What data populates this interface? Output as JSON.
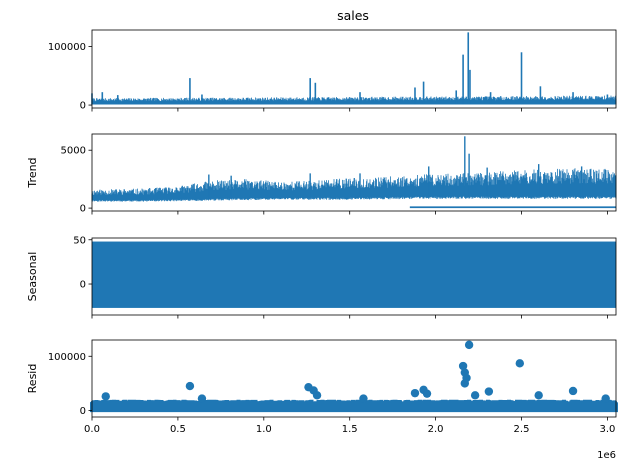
{
  "colors": {
    "series": "#1f77b4",
    "axes": "#000000",
    "background": "#ffffff"
  },
  "figure": {
    "title": "sales",
    "x_offset_label": "1e6"
  },
  "chart_data": [
    {
      "type": "line",
      "name": "observed",
      "title": "sales",
      "ylabel": "",
      "xlim": [
        0,
        3050000
      ],
      "ylim": [
        -5000,
        128000
      ],
      "yticks": [
        0,
        100000
      ],
      "ytick_labels": [
        "0",
        "100000"
      ],
      "sharex_hidden_labels": true,
      "baseline_band": [
        1000,
        13000
      ],
      "peaks": [
        {
          "x": 0,
          "y": 20000
        },
        {
          "x": 60000,
          "y": 22000
        },
        {
          "x": 150000,
          "y": 17000
        },
        {
          "x": 570000,
          "y": 46000
        },
        {
          "x": 640000,
          "y": 18000
        },
        {
          "x": 1270000,
          "y": 46000
        },
        {
          "x": 1300000,
          "y": 38000
        },
        {
          "x": 1560000,
          "y": 22000
        },
        {
          "x": 1880000,
          "y": 30000
        },
        {
          "x": 1930000,
          "y": 40000
        },
        {
          "x": 2120000,
          "y": 25000
        },
        {
          "x": 2160000,
          "y": 86000
        },
        {
          "x": 2190000,
          "y": 124000
        },
        {
          "x": 2200000,
          "y": 60000
        },
        {
          "x": 2320000,
          "y": 22000
        },
        {
          "x": 2500000,
          "y": 90000
        },
        {
          "x": 2610000,
          "y": 32000
        },
        {
          "x": 2800000,
          "y": 22000
        },
        {
          "x": 3000000,
          "y": 18000
        }
      ]
    },
    {
      "type": "line",
      "name": "trend",
      "ylabel": "Trend",
      "xlim": [
        0,
        3050000
      ],
      "ylim": [
        -250,
        6400
      ],
      "yticks": [
        0,
        5000
      ],
      "ytick_labels": [
        "0",
        "5000"
      ],
      "sharex_hidden_labels": true,
      "envelope": {
        "x": [
          0,
          300000,
          500000,
          700000,
          900000,
          1100000,
          1300000,
          1500000,
          1700000,
          1900000,
          2100000,
          2300000,
          2500000,
          2700000,
          2900000,
          3050000
        ],
        "low": [
          700,
          700,
          750,
          800,
          850,
          900,
          900,
          900,
          950,
          1000,
          1000,
          1000,
          1000,
          1000,
          1000,
          1000
        ],
        "high": [
          1600,
          1700,
          1900,
          2400,
          2500,
          2300,
          2400,
          2600,
          2700,
          2900,
          3000,
          3100,
          3300,
          3400,
          3500,
          3300
        ]
      },
      "low_floor_band": [
        {
          "x0": 1850000,
          "x1": 3050000,
          "y": 0
        }
      ],
      "peaks": [
        {
          "x": 680000,
          "y": 2900
        },
        {
          "x": 810000,
          "y": 2800
        },
        {
          "x": 1270000,
          "y": 3000
        },
        {
          "x": 1560000,
          "y": 3000
        },
        {
          "x": 1960000,
          "y": 3600
        },
        {
          "x": 2170000,
          "y": 6200
        },
        {
          "x": 2195000,
          "y": 4700
        },
        {
          "x": 2300000,
          "y": 3500
        },
        {
          "x": 2600000,
          "y": 3800
        },
        {
          "x": 2850000,
          "y": 3600
        }
      ]
    },
    {
      "type": "area",
      "name": "seasonal",
      "ylabel": "Seasonal",
      "xlim": [
        0,
        3050000
      ],
      "ylim": [
        -35,
        52
      ],
      "yticks": [
        0,
        50
      ],
      "ytick_labels": [
        "0",
        "50"
      ],
      "sharex_hidden_labels": true,
      "band": [
        -27,
        48
      ]
    },
    {
      "type": "scatter",
      "name": "resid",
      "ylabel": "Resid",
      "xlabel": "",
      "xlim": [
        0,
        3050000
      ],
      "ylim": [
        -12000,
        130000
      ],
      "yticks": [
        0,
        100000
      ],
      "ytick_labels": [
        "0",
        "100000"
      ],
      "xticks": [
        0,
        500000,
        1000000,
        1500000,
        2000000,
        2500000,
        3000000
      ],
      "xtick_labels": [
        "0.0",
        "0.5",
        "1.0",
        "1.5",
        "2.0",
        "2.5",
        "3.0"
      ],
      "band": [
        -3000,
        20000
      ],
      "points": [
        {
          "x": 80000,
          "y": 26000
        },
        {
          "x": 570000,
          "y": 45000
        },
        {
          "x": 640000,
          "y": 22000
        },
        {
          "x": 1260000,
          "y": 43000
        },
        {
          "x": 1290000,
          "y": 37000
        },
        {
          "x": 1310000,
          "y": 28000
        },
        {
          "x": 1580000,
          "y": 22000
        },
        {
          "x": 1880000,
          "y": 32000
        },
        {
          "x": 1930000,
          "y": 38000
        },
        {
          "x": 1950000,
          "y": 31000
        },
        {
          "x": 2160000,
          "y": 82000
        },
        {
          "x": 2170000,
          "y": 70000
        },
        {
          "x": 2170000,
          "y": 50000
        },
        {
          "x": 2180000,
          "y": 60000
        },
        {
          "x": 2195000,
          "y": 121000
        },
        {
          "x": 2230000,
          "y": 28000
        },
        {
          "x": 2310000,
          "y": 35000
        },
        {
          "x": 2490000,
          "y": 87000
        },
        {
          "x": 2600000,
          "y": 28000
        },
        {
          "x": 2800000,
          "y": 36000
        },
        {
          "x": 2990000,
          "y": 22000
        }
      ]
    }
  ]
}
